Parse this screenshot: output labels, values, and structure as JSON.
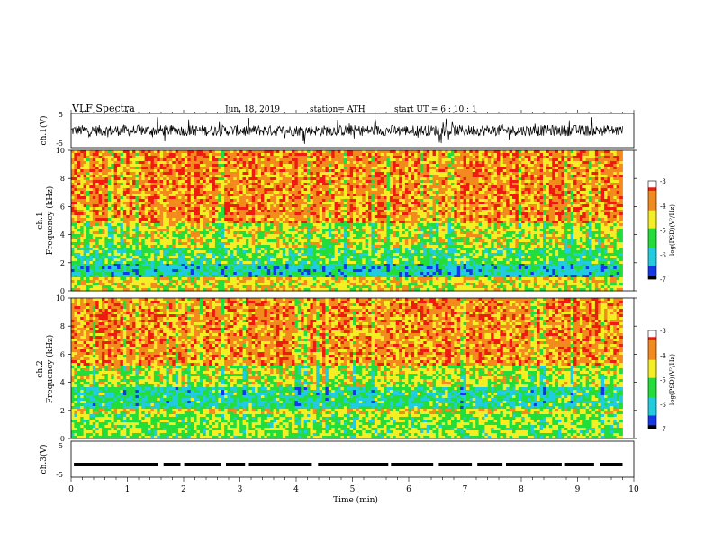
{
  "header": {
    "title": "VLF  Spectra",
    "date": "Jun. 18, 2019",
    "station": "station= ATH",
    "start": "start  UT  =   6  : 10 : 1"
  },
  "colors": {
    "spec_red": "#ee1c10",
    "spec_orange": "#f28a1e",
    "spec_yellow": "#f4ee24",
    "spec_green": "#22dd3a",
    "spec_cyan": "#22cce0",
    "spec_blue": "#1438e8",
    "trace": "#000000"
  },
  "chart_data": [
    {
      "type": "line",
      "name": "ch1-waveform",
      "ylabel": "ch.1(V)",
      "ylim": [
        -5,
        5
      ],
      "yticks": [
        "5",
        "-5"
      ],
      "x_range_min": [
        0,
        9.8
      ],
      "description_level": "noisy waveform centered near 0 V with spikes to about ±4 V"
    },
    {
      "type": "heatmap",
      "name": "ch1-spectrogram",
      "ylabel": "ch.1\nFrequency  (kHz)",
      "ylim": [
        0,
        10
      ],
      "yticks": [
        "0",
        "2",
        "4",
        "6",
        "8",
        "10"
      ],
      "xlim_min": [
        0,
        9.8
      ],
      "colorbar": {
        "label": "log(PSD)(V²/Hz)",
        "range": [
          -7,
          -3
        ],
        "ticks": [
          "-3",
          "-4",
          "-5",
          "-6",
          "-7"
        ]
      },
      "bands_khz": [
        {
          "from": 0,
          "to": 0.6,
          "level": -4.5
        },
        {
          "from": 0.6,
          "to": 1.0,
          "level": -4.3
        },
        {
          "from": 1.0,
          "to": 1.9,
          "level": -5.9
        },
        {
          "from": 1.9,
          "to": 3.0,
          "level": -5.3
        },
        {
          "from": 3.0,
          "to": 4.8,
          "level": -4.7
        },
        {
          "from": 4.8,
          "to": 10.0,
          "level": -3.8
        }
      ]
    },
    {
      "type": "heatmap",
      "name": "ch2-spectrogram",
      "ylabel": "ch.2\nFrequency  (kHz)",
      "ylim": [
        0,
        10
      ],
      "yticks": [
        "0",
        "2",
        "4",
        "6",
        "8",
        "10"
      ],
      "xlim_min": [
        0,
        9.8
      ],
      "colorbar": {
        "label": "log(PSD)(V²/Hz)",
        "range": [
          -7,
          -3
        ],
        "ticks": [
          "-3",
          "-4",
          "-5",
          "-6",
          "-7"
        ]
      },
      "bands_khz": [
        {
          "from": 0,
          "to": 1.8,
          "level": -5.0
        },
        {
          "from": 1.8,
          "to": 2.2,
          "level": -4.5
        },
        {
          "from": 2.2,
          "to": 3.6,
          "level": -5.6
        },
        {
          "from": 3.6,
          "to": 5.2,
          "level": -4.7
        },
        {
          "from": 5.2,
          "to": 10.0,
          "level": -3.8
        }
      ]
    },
    {
      "type": "line",
      "name": "ch3-waveform",
      "ylabel": "ch.3(V)",
      "ylim": [
        -5,
        5
      ],
      "yticks": [
        "5",
        "-5"
      ],
      "constant_level": -1.5
    }
  ],
  "xaxis": {
    "label": "Time  (min)",
    "ticks": [
      "0",
      "1",
      "2",
      "3",
      "4",
      "5",
      "6",
      "7",
      "8",
      "9",
      "10"
    ],
    "range": [
      0,
      10
    ]
  }
}
